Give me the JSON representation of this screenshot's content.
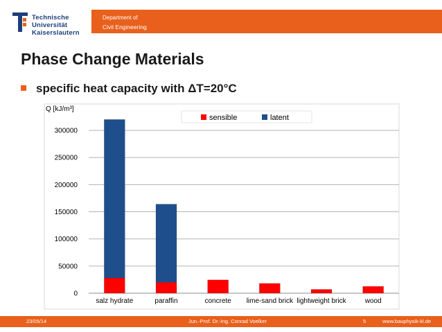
{
  "header": {
    "logo_line1": "Technische Universität",
    "logo_line2": "Kaiserslautern",
    "dept_line1": "Department of",
    "dept_line2": "Civil Engineering"
  },
  "slide": {
    "title": "Phase Change Materials",
    "bullet": "specific heat capacity with ΔT=20°C"
  },
  "colors": {
    "accent": "#e8601c",
    "sensible": "#ff0000",
    "latent": "#1f4e8c"
  },
  "chart_data": {
    "type": "bar",
    "stacked": true,
    "ylabel": "Q [kJ/m³]",
    "ylim": [
      0,
      325000
    ],
    "yticks": [
      0,
      50000,
      100000,
      150000,
      200000,
      250000,
      300000
    ],
    "grid": true,
    "legend": "top-right",
    "categories": [
      "salz hydrate",
      "paraffin",
      "concrete",
      "lime-sand brick",
      "lightweight brick",
      "wood"
    ],
    "series": [
      {
        "name": "sensible",
        "values": [
          28000,
          20000,
          24500,
          18000,
          7000,
          12500
        ]
      },
      {
        "name": "latent",
        "values": [
          292000,
          144000,
          0,
          0,
          0,
          0
        ]
      }
    ]
  },
  "footer": {
    "date": "23/05/14",
    "author": "Jun.-Prof. Dr.-Ing. Conrad Voelker",
    "page": "5",
    "url": "www.bauphysik-kl.de"
  }
}
